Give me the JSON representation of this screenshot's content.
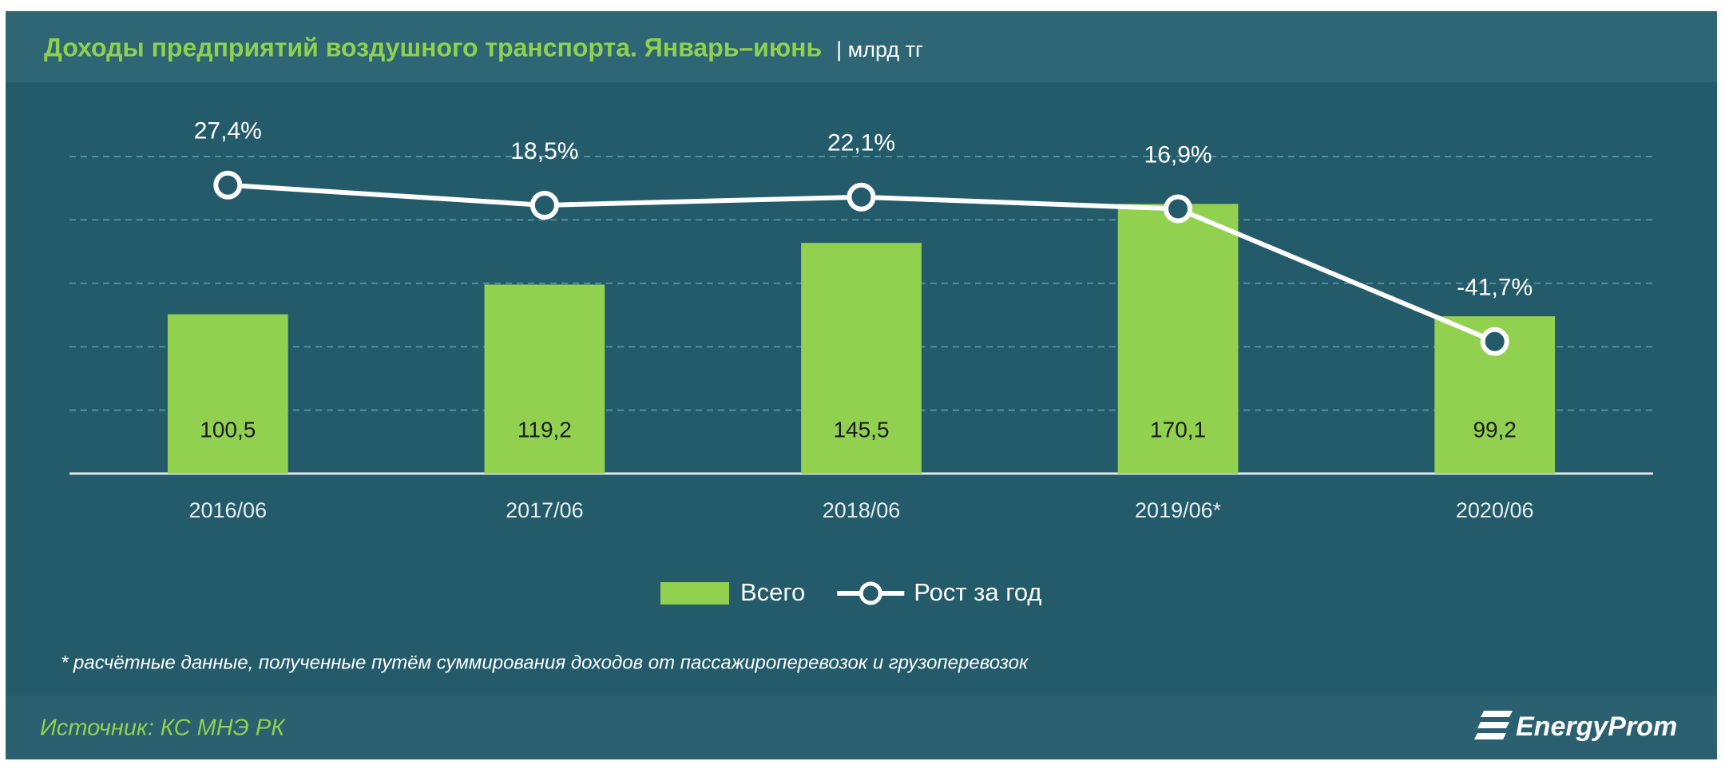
{
  "chart_data": {
    "type": "bar_line",
    "title": "Доходы предприятий воздушного транспорта. Январь–июнь",
    "unit": "| млрд тг",
    "categories": [
      "2016/06",
      "2017/06",
      "2018/06",
      "2019/06*",
      "2020/06"
    ],
    "series": [
      {
        "name": "Всего",
        "type": "bar",
        "color": "#92d050",
        "values": [
          100.5,
          119.2,
          145.5,
          170.1,
          99.2
        ],
        "value_labels": [
          "100,5",
          "119,2",
          "145,5",
          "170,1",
          "99,2"
        ]
      },
      {
        "name": "Рост за год",
        "type": "line",
        "axis": "y2",
        "color": "#ffffff",
        "values": [
          27.4,
          18.5,
          22.1,
          16.9,
          -41.7
        ],
        "value_labels": [
          "27,4%",
          "18,5%",
          "22,1%",
          "16,9%",
          "-41,7%"
        ]
      }
    ],
    "ylim": [
      0,
      200
    ],
    "yticks": [
      0,
      40,
      80,
      120,
      160,
      200
    ],
    "y2lim": [
      -100,
      40
    ],
    "grid": true,
    "legend": "bottom",
    "note": "* расчётные данные, полученные путём суммирования доходов от пассажироперевозок и грузоперевозок",
    "source": "Источник: КС МНЭ РК",
    "logo": "EnergyProm"
  }
}
